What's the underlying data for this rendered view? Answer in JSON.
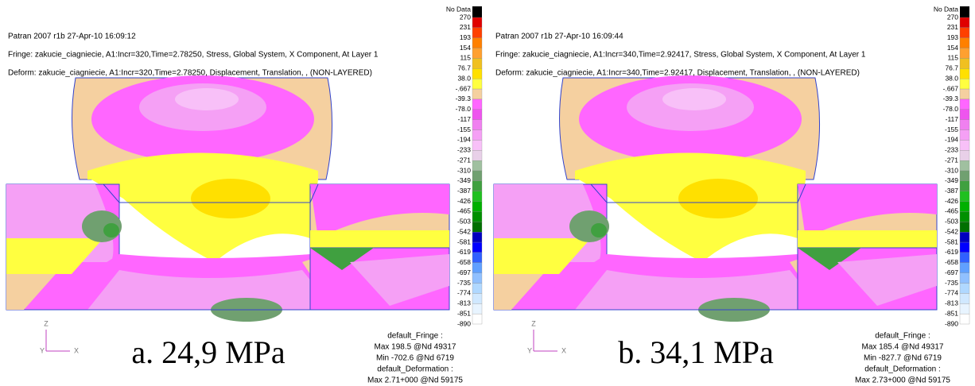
{
  "panels": [
    {
      "header": [
        "Patran 2007 r1b 27-Apr-10 16:09:12",
        "Fringe: zakucie_ciagniecie, A1:Incr=320,Time=2.78250, Stress, Global System, X Component, At Layer 1",
        "Deform: zakucie_ciagniecie, A1:Incr=320,Time=2.78250, Displacement, Translation, , (NON-LAYERED)"
      ],
      "legend_labels": [
        "No Data",
        "270",
        "231",
        "193",
        "154",
        "115",
        "76.7",
        "38.0",
        "-.667",
        "-39.3",
        "-78.0",
        "-117",
        "-155",
        "-194",
        "-233",
        "-271",
        "-310",
        "-349",
        "-387",
        "-426",
        "-465",
        "-503",
        "-542",
        "-581",
        "-619",
        "-658",
        "-697",
        "-735",
        "-774",
        "-813",
        "-851",
        "-890"
      ],
      "footer": [
        "default_Fringe :",
        "Max 198.5 @Nd 49317",
        "Min -702.6 @Nd 6719",
        "default_Deformation :",
        "Max 2.71+000 @Nd 59175"
      ],
      "caption": "a. 24,9 MPa",
      "triad": {
        "z": "Z",
        "y": "Y",
        "x": "X"
      }
    },
    {
      "header": [
        "Patran 2007 r1b 27-Apr-10 16:09:44",
        "Fringe: zakucie_ciagniecie, A1:Incr=340,Time=2.92417, Stress, Global System, X Component, At Layer 1",
        "Deform: zakucie_ciagniecie, A1:Incr=340,Time=2.92417, Displacement, Translation, , (NON-LAYERED)"
      ],
      "legend_labels": [
        "No Data",
        "270",
        "231",
        "193",
        "154",
        "115",
        "76.7",
        "38.0",
        "-.667",
        "-39.3",
        "-78.0",
        "-117",
        "-155",
        "-194",
        "-233",
        "-271",
        "-310",
        "-349",
        "-387",
        "-426",
        "-465",
        "-503",
        "-542",
        "-581",
        "-619",
        "-658",
        "-697",
        "-735",
        "-774",
        "-813",
        "-851",
        "-890"
      ],
      "footer": [
        "default_Fringe :",
        "Max 185.4 @Nd 49317",
        "Min -827.7 @Nd 6719",
        "default_Deformation :",
        "Max 2.73+000 @Nd 59175"
      ],
      "caption": "b. 34,1 MPa",
      "triad": {
        "z": "Z",
        "y": "Y",
        "x": "X"
      }
    }
  ],
  "legend_colors": [
    "#000000",
    "#e00000",
    "#ff4000",
    "#ff8000",
    "#ffa030",
    "#f0c020",
    "#ffe000",
    "#ffff40",
    "#f5d0a0",
    "#ff66ff",
    "#ee55ee",
    "#f080f0",
    "#f5a0f5",
    "#f8c0f8",
    "#e8d0e8",
    "#a0c0a0",
    "#70a070",
    "#40a040",
    "#20c020",
    "#00b000",
    "#009000",
    "#007000",
    "#0000c0",
    "#0000ff",
    "#3060ff",
    "#60a0ff",
    "#90c0ff",
    "#b0d8ff",
    "#d0e8ff",
    "#e8f4ff",
    "#ffffff"
  ]
}
